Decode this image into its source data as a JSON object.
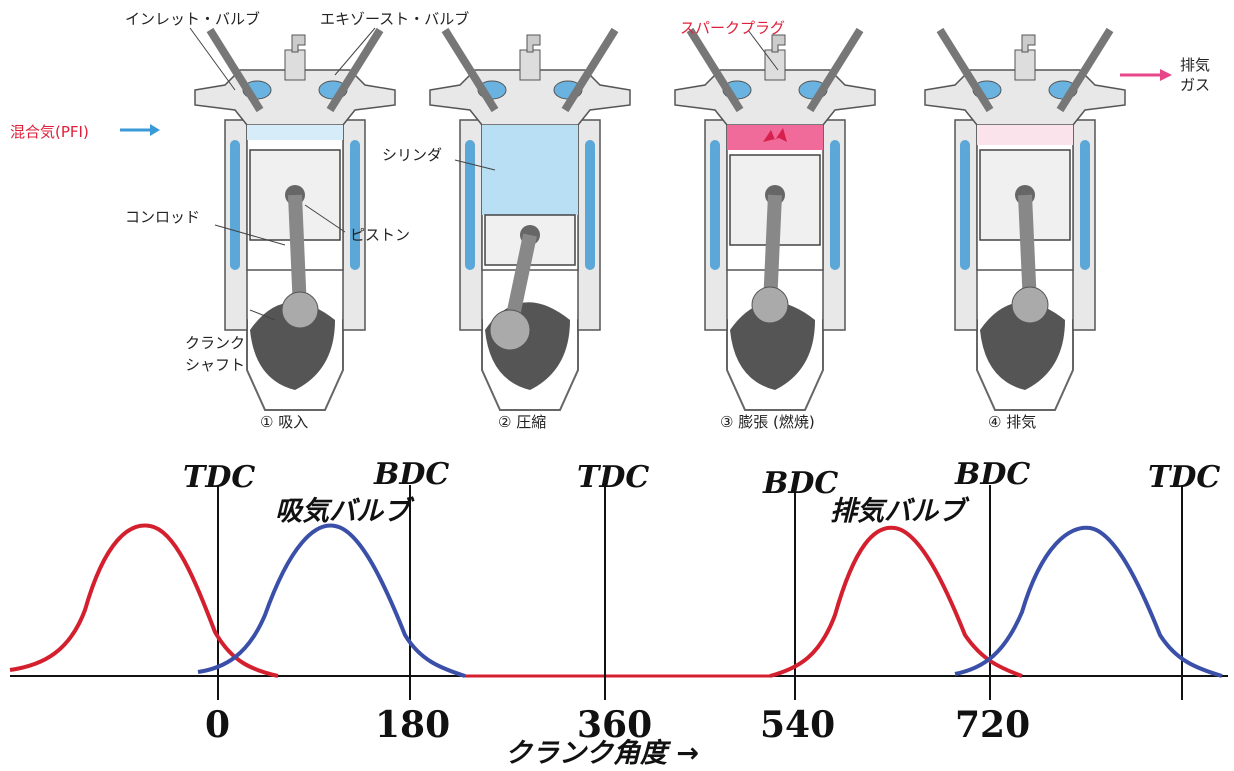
{
  "labels": {
    "inlet_valve": "インレット・バルブ",
    "exhaust_valve": "エキゾースト・バルブ",
    "spark_plug": "スパークプラグ",
    "mixture": "混合気(PFI)",
    "exhaust_gas_line1": "排気",
    "exhaust_gas_line2": "ガス",
    "cylinder": "シリンダ",
    "conrod": "コンロッド",
    "piston": "ピストン",
    "crankshaft_line1": "クランク",
    "crankshaft_line2": "シャフト"
  },
  "stages": [
    {
      "label": "① 吸入"
    },
    {
      "label": "② 圧縮"
    },
    {
      "label": "③ 膨張 (燃焼)"
    },
    {
      "label": "④ 排気"
    }
  ],
  "timing": {
    "markers": [
      "TDC",
      "BDC",
      "TDC",
      "BDC",
      "BDC",
      "TDC"
    ],
    "valve_intake": "吸気バルブ",
    "valve_exhaust": "排気バルブ",
    "ticks": [
      "0",
      "180",
      "360",
      "540",
      "720"
    ],
    "xlabel": "クランク角度 →",
    "colors": {
      "exhaust": "#d4202e",
      "intake": "#3a4fa8"
    }
  }
}
